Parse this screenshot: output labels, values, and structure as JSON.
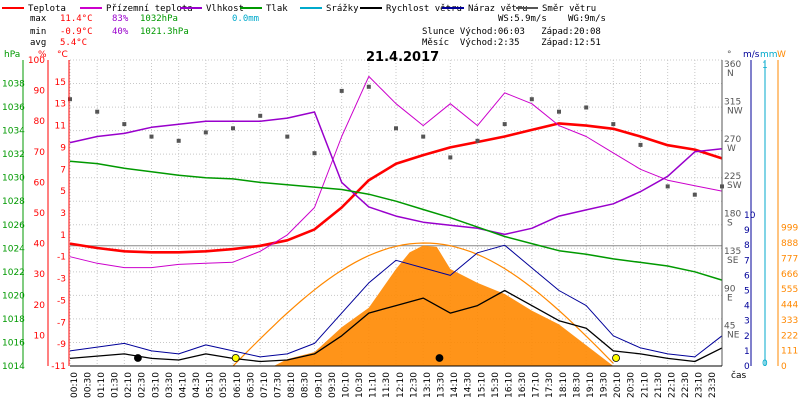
{
  "chart_data": {
    "type": "line",
    "title": "21.4.2017",
    "legend": [
      {
        "name": "Teplota",
        "color": "#ff0000"
      },
      {
        "name": "Přízemní teplota",
        "color": "#cc00cc"
      },
      {
        "name": "Vlhkost",
        "color": "#9900cc"
      },
      {
        "name": "Tlak",
        "color": "#009900"
      },
      {
        "name": "Srážky",
        "color": "#00aacc"
      },
      {
        "name": "Rychlost větru",
        "color": "#000000"
      },
      {
        "name": "Náraz větru",
        "color": "#000099"
      },
      {
        "name": "Směr větru",
        "color": "#555555"
      }
    ],
    "stats": {
      "max_label": "max",
      "max_temp": "11.4°C",
      "max_hum": "83%",
      "max_press": "1032hPa",
      "max_rain": "0.0mm",
      "min_label": "min",
      "min_temp": "-0.9°C",
      "min_hum": "40%",
      "min_press": "1021.3hPa",
      "avg_label": "avg",
      "avg_temp": "5.4°C"
    },
    "info": {
      "wind": "WS:5.9m/s",
      "gust": "WG:9m/s",
      "sun": "Slunce Východ:06:03   Západ:20:08",
      "moon": "Měsíc  Východ:2:35    Západ:12:51"
    },
    "axes": {
      "hpa_unit": "hPa",
      "pct_unit": "%",
      "c_unit": "°C",
      "deg_unit": "°",
      "ms_unit": "m/s",
      "mm_unit": "mm",
      "w_unit": "W",
      "time_label": "čas",
      "hpa_ticks": [
        1014,
        1016,
        1018,
        1020,
        1022,
        1024,
        1026,
        1028,
        1030,
        1032,
        1034,
        1036,
        1038
      ],
      "pct_ticks": [
        10,
        20,
        30,
        40,
        50,
        60,
        70,
        80,
        90,
        100
      ],
      "c_ticks": [
        -11,
        -9,
        -7,
        -5,
        -3,
        -1,
        1,
        3,
        5,
        7,
        9,
        11,
        13,
        15
      ],
      "dir_ticks": [
        {
          "v": "360",
          "d": "N"
        },
        {
          "v": "315",
          "d": "NW"
        },
        {
          "v": "270",
          "d": "W"
        },
        {
          "v": "225",
          "d": "SW"
        },
        {
          "v": "180",
          "d": "S"
        },
        {
          "v": "135",
          "d": "SE"
        },
        {
          "v": "90",
          "d": "E"
        },
        {
          "v": "45",
          "d": "NE"
        }
      ],
      "ms_ticks": [
        "10",
        "9",
        "8",
        "7",
        "6",
        "5",
        "4",
        "3",
        "2",
        "1",
        "0"
      ],
      "mm_ticks": [
        "1",
        "0"
      ],
      "w_ticks": [
        "999",
        "888",
        "777",
        "666",
        "555",
        "444",
        "333",
        "222",
        "111",
        "0"
      ],
      "time_ticks": [
        "00:10",
        "00:30",
        "01:10",
        "01:30",
        "02:10",
        "02:30",
        "03:10",
        "03:30",
        "04:10",
        "04:30",
        "05:10",
        "05:30",
        "06:10",
        "06:30",
        "07:10",
        "07:30",
        "08:10",
        "08:30",
        "09:10",
        "09:30",
        "10:10",
        "10:30",
        "11:10",
        "11:30",
        "12:10",
        "12:30",
        "13:10",
        "13:30",
        "14:10",
        "14:30",
        "15:10",
        "15:30",
        "16:10",
        "16:30",
        "17:10",
        "17:30",
        "18:10",
        "18:30",
        "19:10",
        "19:30",
        "20:10",
        "20:30",
        "21:10",
        "21:30",
        "22:10",
        "22:30",
        "23:10",
        "23:30"
      ],
      "temp_range": [
        -11,
        17
      ],
      "hum_range": [
        0,
        100
      ],
      "press_range": [
        1014,
        1040
      ]
    },
    "series": [
      {
        "name": "Teplota",
        "color": "#ff0000",
        "x": [
          0,
          1,
          2,
          3,
          4,
          5,
          6,
          7,
          8,
          9,
          10,
          11,
          12,
          13,
          14,
          15,
          16,
          17,
          18,
          19,
          20,
          21,
          22,
          23,
          24
        ],
        "y": [
          0.2,
          -0.2,
          -0.5,
          -0.6,
          -0.6,
          -0.5,
          -0.3,
          0.0,
          0.5,
          1.5,
          3.5,
          6.0,
          7.5,
          8.3,
          9.0,
          9.5,
          10.0,
          10.6,
          11.2,
          11.0,
          10.7,
          10.0,
          9.2,
          8.8,
          8.0
        ]
      },
      {
        "name": "Přízemní teplota",
        "color": "#cc00cc",
        "x": [
          0,
          1,
          2,
          3,
          4,
          5,
          6,
          7,
          8,
          9,
          10,
          11,
          12,
          13,
          14,
          15,
          16,
          17,
          18,
          19,
          20,
          21,
          22,
          23,
          24
        ],
        "y": [
          -1.0,
          -1.6,
          -2.0,
          -2.0,
          -1.7,
          -1.6,
          -1.5,
          -0.5,
          1.0,
          3.5,
          10.0,
          15.5,
          13.0,
          11.0,
          13.0,
          11.0,
          14.0,
          13.0,
          11.0,
          10.0,
          8.5,
          7.0,
          6.0,
          5.5,
          5.0
        ]
      },
      {
        "name": "Vlhkost",
        "color": "#9900cc",
        "x": [
          0,
          1,
          2,
          3,
          4,
          5,
          6,
          7,
          8,
          9,
          10,
          11,
          12,
          13,
          14,
          15,
          16,
          17,
          18,
          19,
          20,
          21,
          22,
          23,
          24
        ],
        "y": [
          73,
          75,
          76,
          78,
          79,
          80,
          80,
          80,
          81,
          83,
          60,
          52,
          49,
          47,
          46,
          45,
          43,
          45,
          49,
          51,
          53,
          57,
          62,
          70,
          71
        ]
      },
      {
        "name": "Tlak",
        "color": "#009900",
        "x": [
          0,
          1,
          2,
          3,
          4,
          5,
          6,
          7,
          8,
          9,
          10,
          11,
          12,
          13,
          14,
          15,
          16,
          17,
          18,
          19,
          20,
          21,
          22,
          23,
          24
        ],
        "y": [
          1031.4,
          1031.2,
          1030.8,
          1030.5,
          1030.2,
          1030.0,
          1029.9,
          1029.6,
          1029.4,
          1029.2,
          1029.0,
          1028.6,
          1028.0,
          1027.3,
          1026.6,
          1025.8,
          1025.0,
          1024.4,
          1023.8,
          1023.5,
          1023.1,
          1022.8,
          1022.5,
          1022.0,
          1021.3
        ]
      },
      {
        "name": "Rychlost větru",
        "color": "#000000",
        "x": [
          0,
          2,
          3,
          4,
          5,
          6,
          7,
          8,
          9,
          10,
          11,
          12,
          13,
          14,
          15,
          16,
          17,
          18,
          19,
          20,
          21,
          22,
          23,
          24
        ],
        "y": [
          0.5,
          0.8,
          0.5,
          0.4,
          0.8,
          0.5,
          0.3,
          0.4,
          0.8,
          2.0,
          3.5,
          4.0,
          4.5,
          3.5,
          4.0,
          5.0,
          4.0,
          3.0,
          2.5,
          1.0,
          0.8,
          0.5,
          0.3,
          1.2
        ]
      },
      {
        "name": "Náraz větru",
        "color": "#000099",
        "x": [
          0,
          2,
          3,
          4,
          5,
          6,
          7,
          8,
          9,
          10,
          11,
          12,
          13,
          14,
          15,
          16,
          17,
          18,
          19,
          20,
          21,
          22,
          23,
          24
        ],
        "y": [
          1.0,
          1.5,
          1.0,
          0.8,
          1.4,
          1.0,
          0.6,
          0.8,
          1.5,
          3.5,
          5.5,
          7.0,
          6.5,
          6.0,
          7.5,
          8.0,
          6.5,
          5.0,
          4.0,
          2.0,
          1.2,
          0.8,
          0.6,
          2.0
        ]
      },
      {
        "name": "Směr větru",
        "color": "#555555",
        "x": [
          0,
          1,
          2,
          3,
          4,
          5,
          6,
          7,
          8,
          9,
          10,
          11,
          12,
          13,
          14,
          15,
          16,
          17,
          18,
          19,
          20,
          21,
          22,
          23,
          24
        ],
        "y": [
          320,
          305,
          290,
          275,
          270,
          280,
          285,
          300,
          275,
          255,
          330,
          335,
          285,
          275,
          250,
          270,
          290,
          320,
          305,
          310,
          290,
          265,
          215,
          205,
          215
        ]
      },
      {
        "name": "Sluneční svit",
        "color": "#ff8800",
        "x": [
          7.5,
          8,
          9,
          10,
          11,
          12,
          12.5,
          13,
          13.5,
          14,
          15,
          16,
          17,
          18,
          19,
          20
        ],
        "y": [
          0,
          50,
          100,
          280,
          420,
          700,
          820,
          870,
          860,
          700,
          600,
          520,
          400,
          300,
          150,
          0
        ]
      }
    ]
  }
}
